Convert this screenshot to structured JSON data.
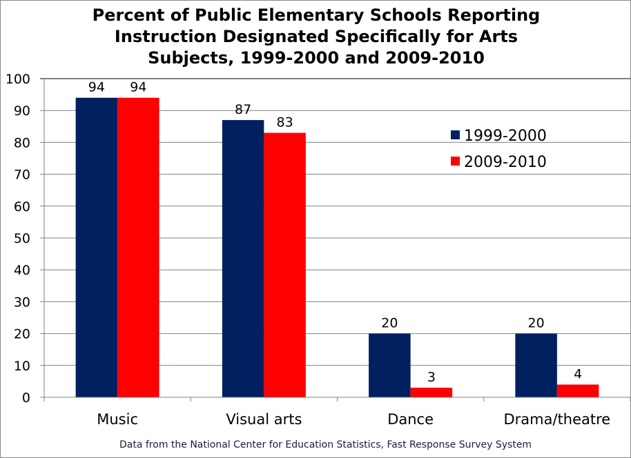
{
  "chart_data": {
    "type": "bar",
    "title": "Percent of Public Elementary Schools Reporting\nInstruction Designated Specifically for Arts\nSubjects, 1999-2000 and 2009-2010",
    "categories": [
      "Music",
      "Visual arts",
      "Dance",
      "Drama/theatre"
    ],
    "series": [
      {
        "name": "1999-2000",
        "color": "#002060",
        "values": [
          94,
          87,
          20,
          20
        ]
      },
      {
        "name": "2009-2010",
        "color": "#FF0000",
        "values": [
          94,
          83,
          3,
          4
        ]
      }
    ],
    "ylim": [
      0,
      100
    ],
    "yticks": [
      0,
      10,
      20,
      30,
      40,
      50,
      60,
      70,
      80,
      90,
      100
    ],
    "xlabel": "",
    "ylabel": "",
    "grid": true,
    "legend": "right",
    "footnote": "Data from the National Center for Education Statistics, Fast Response Survey System"
  }
}
